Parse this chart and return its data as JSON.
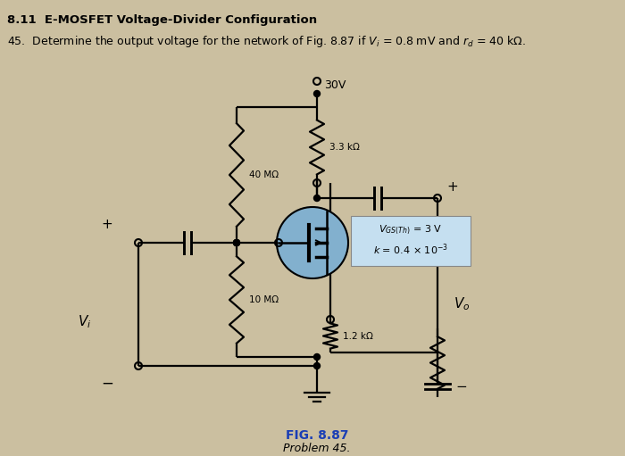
{
  "title_line1": "8.11  E-MOSFET Voltage-Divider Configuration",
  "title_line2": "45. Determine the output voltage for the network of Fig. 8.87 if $V_i$ = 0.8 mV and $r_d$ = 40 k$\\Omega$.",
  "fig_label": "FIG. 8.87",
  "fig_sublabel": "Problem 45.",
  "vdd_label": "30V",
  "r_drain_label": "3.3 kΩ",
  "r_top_label": "40 MΩ",
  "r_bot_label": "10 MΩ",
  "r_source_label": "1.2 kΩ",
  "mosfet_vgs": "$V_{GS(Th)}$ = 3 V",
  "mosfet_k": "$k$ = 0.4 × 10$^{-3}$",
  "vi_label": "$V_i$",
  "vo_label": "$V_o$",
  "plus_label": "+",
  "minus_label": "−",
  "bg_color": "#cbbfa0",
  "text_color": "#000000",
  "blue_color": "#1a3eb5",
  "mosfet_fill": "#7aafd4",
  "box_fill": "#c5dff0",
  "lw": 1.6
}
